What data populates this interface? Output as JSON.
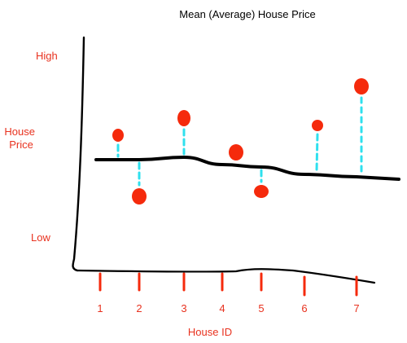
{
  "chart_data": {
    "type": "scatter",
    "title": "Mean (Average) House Price",
    "xlabel": "House ID",
    "ylabel": "House Price",
    "ytick_labels": [
      "High",
      "Low"
    ],
    "categories": [
      "1",
      "2",
      "3",
      "4",
      "5",
      "6",
      "7"
    ],
    "mean_line_label": "",
    "points": [
      {
        "x": 1,
        "y": 0.6
      },
      {
        "x": 2,
        "y": 0.35
      },
      {
        "x": 3,
        "y": 0.67
      },
      {
        "x": 4,
        "y": 0.53
      },
      {
        "x": 5,
        "y": 0.37
      },
      {
        "x": 6,
        "y": 0.64
      },
      {
        "x": 7,
        "y": 0.8
      }
    ],
    "mean_y": [
      0.5,
      0.5,
      0.51,
      0.48,
      0.47,
      0.44,
      0.43
    ],
    "ylim": [
      0,
      1
    ],
    "grid": false,
    "colors": {
      "points": "#f52a0c",
      "residuals": "#2fe0ee",
      "mean_line": "#000000",
      "labels": "#e8321f"
    }
  }
}
